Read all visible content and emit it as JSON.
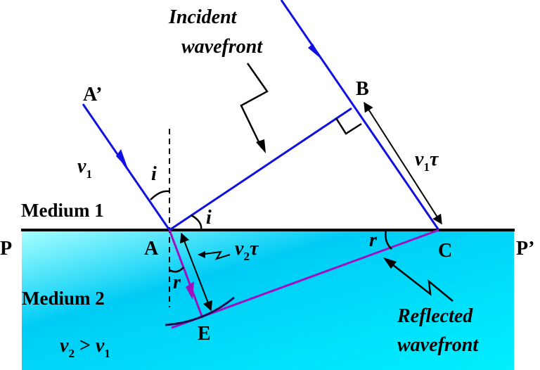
{
  "labels": {
    "incident_line1": "Incident",
    "incident_line2": "wavefront",
    "reflected_line1": "Reflected",
    "reflected_line2": "wavefront",
    "medium1": "Medium 1",
    "medium2": "Medium 2",
    "P": "P",
    "P_prime": "P’",
    "A": "A",
    "A_prime": "A’",
    "B": "B",
    "C": "C",
    "E": "E",
    "v1": "v",
    "v1_sub": "1",
    "v1tau": "v",
    "v1tau_sub": "1",
    "v1tau_tau": "τ",
    "v2tau": "v",
    "v2tau_sub": "2",
    "v2tau_tau": "τ",
    "angle_i_1": "i",
    "angle_i_2": "i",
    "angle_r_1": "r",
    "angle_r_2": "r",
    "cond_v2": "v",
    "cond_v2_sub": "2",
    "cond_gt": " > ",
    "cond_v1": "v",
    "cond_v1_sub": "1"
  },
  "colors": {
    "incident_ray": "#1010e0",
    "refracted_ray": "#a010c0",
    "medium2_light": "#a8ffff",
    "medium2_mid": "#00ccf5",
    "medium2_right": "#00f0ff",
    "arc": "#101050"
  }
}
